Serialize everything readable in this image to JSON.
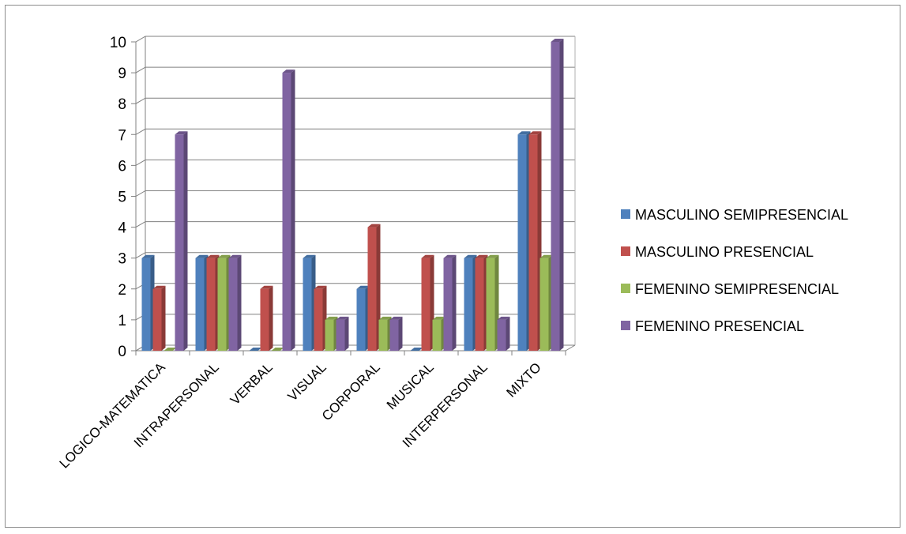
{
  "chart_data": {
    "type": "bar",
    "title": "",
    "xlabel": "",
    "ylabel": "",
    "ylim": [
      0,
      10
    ],
    "yticks": [
      0,
      1,
      2,
      3,
      4,
      5,
      6,
      7,
      8,
      9,
      10
    ],
    "grid": true,
    "legend_position": "right",
    "categories": [
      "LOGICO-MATEMATICA",
      "INTRAPERSONAL",
      "VERBAL",
      "VISUAL",
      "CORPORAL",
      "MUSICAL",
      "INTERPERSONAL",
      "MIXTO"
    ],
    "series": [
      {
        "name": "MASCULINO SEMIPRESENCIAL",
        "color": "#4f81bd",
        "values": [
          3,
          3,
          0,
          3,
          2,
          0,
          3,
          7
        ]
      },
      {
        "name": "MASCULINO PRESENCIAL",
        "color": "#c0504d",
        "values": [
          2,
          3,
          2,
          2,
          4,
          3,
          3,
          7
        ]
      },
      {
        "name": "FEMENINO SEMIPRESENCIAL",
        "color": "#9bbb59",
        "values": [
          0,
          3,
          0,
          1,
          1,
          1,
          3,
          3
        ]
      },
      {
        "name": "FEMENINO PRESENCIAL",
        "color": "#8064a2",
        "values": [
          7,
          3,
          9,
          1,
          1,
          3,
          1,
          10
        ]
      }
    ]
  }
}
